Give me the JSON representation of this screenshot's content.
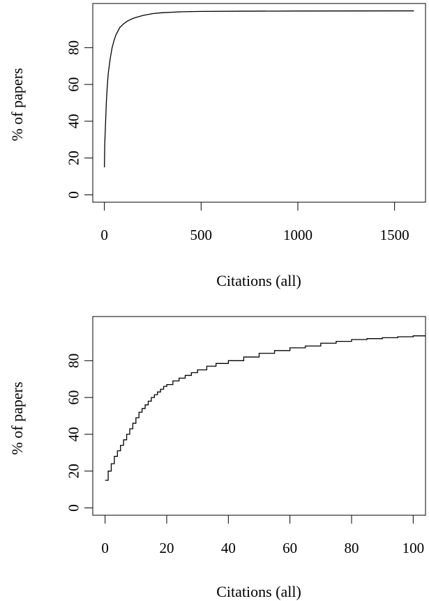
{
  "chart_data": [
    {
      "type": "line",
      "title": "",
      "xlabel": "Citations (all)",
      "ylabel": "% of papers",
      "xlim": [
        -60,
        1660
      ],
      "ylim": [
        -4,
        104
      ],
      "x_ticks": [
        0,
        500,
        1000,
        1500
      ],
      "y_ticks": [
        0,
        20,
        40,
        60,
        80
      ],
      "grid": false,
      "series": [
        {
          "x": [
            0,
            2,
            5,
            10,
            15,
            20,
            30,
            40,
            50,
            60,
            70,
            80,
            90,
            100,
            120,
            150,
            200,
            250,
            300,
            400,
            500,
            700,
            1000,
            1300,
            1600
          ],
          "y": [
            15,
            28,
            36,
            50,
            59,
            66,
            74,
            80,
            84,
            87,
            89,
            91,
            92,
            93,
            94.5,
            96,
            97.5,
            98.5,
            99,
            99.5,
            99.7,
            99.8,
            99.9,
            99.95,
            100
          ]
        }
      ]
    },
    {
      "type": "line",
      "title": "",
      "xlabel": "Citations (all)",
      "ylabel": "% of papers",
      "xlim": [
        -4,
        104
      ],
      "ylim": [
        -4,
        104
      ],
      "x_ticks": [
        0,
        20,
        40,
        60,
        80,
        100
      ],
      "y_ticks": [
        0,
        20,
        40,
        60,
        80
      ],
      "grid": false,
      "step": true,
      "series": [
        {
          "x": [
            0,
            1,
            2,
            3,
            4,
            5,
            6,
            7,
            8,
            9,
            10,
            11,
            12,
            13,
            14,
            15,
            16,
            17,
            18,
            19,
            20,
            22,
            24,
            26,
            28,
            30,
            33,
            36,
            40,
            45,
            50,
            55,
            60,
            65,
            70,
            75,
            80,
            85,
            90,
            95,
            100,
            104
          ],
          "y": [
            15,
            20,
            24,
            28,
            31,
            34,
            37,
            40,
            43,
            46,
            49,
            52,
            54,
            56,
            58,
            60,
            61.5,
            63,
            64.5,
            66,
            67,
            69,
            70.5,
            72,
            73.5,
            75,
            77,
            78.5,
            80,
            82,
            84,
            85.5,
            87,
            88,
            89.5,
            90.5,
            91.5,
            92,
            92.5,
            93,
            93.5,
            93.8
          ]
        }
      ]
    }
  ]
}
